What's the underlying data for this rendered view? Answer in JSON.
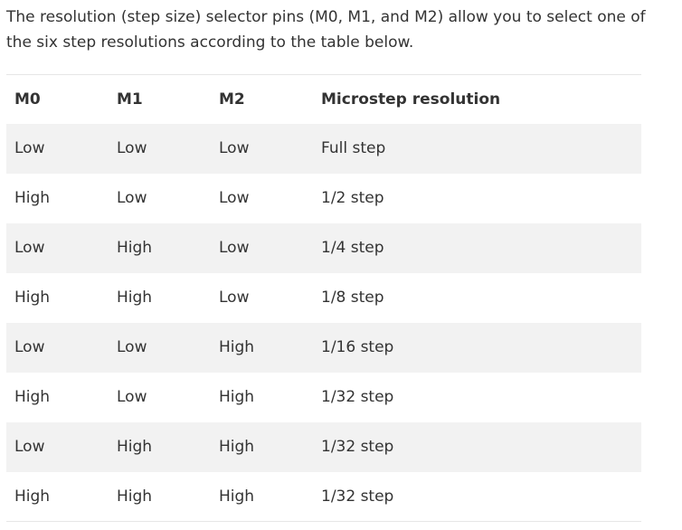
{
  "intro": {
    "text": "The resolution (step size) selector pins (M0, M1, and M2) allow you to select one of the six step resolutions according to the table below."
  },
  "table": {
    "headers": [
      "M0",
      "M1",
      "M2",
      "Microstep resolution"
    ],
    "rows": [
      [
        "Low",
        "Low",
        "Low",
        "Full step"
      ],
      [
        "High",
        "Low",
        "Low",
        "1/2 step"
      ],
      [
        "Low",
        "High",
        "Low",
        "1/4 step"
      ],
      [
        "High",
        "High",
        "Low",
        "1/8 step"
      ],
      [
        "Low",
        "Low",
        "High",
        "1/16 step"
      ],
      [
        "High",
        "Low",
        "High",
        "1/32 step"
      ],
      [
        "Low",
        "High",
        "High",
        "1/32 step"
      ],
      [
        "High",
        "High",
        "High",
        "1/32 step"
      ]
    ]
  }
}
